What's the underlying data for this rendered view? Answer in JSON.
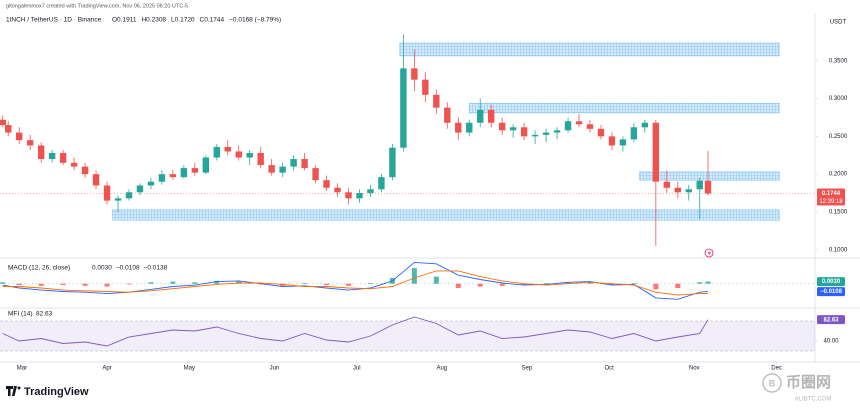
{
  "header": {
    "author": "gitongalenmox7 created with TradingView.com, Nov 06, 2025 06:20 UTC-5",
    "symbol": "1INCH / TetherUS · 1D · Binance",
    "ohlc": [
      "O0.1911",
      "H0.2308",
      "L0.1720",
      "C0.1744",
      "−0.0168 (−8.79%)"
    ]
  },
  "chart_data": [
    {
      "type": "candlestick",
      "currency": "USDT",
      "xlim": [
        52,
        349
      ],
      "xticks": [
        {
          "value": 60,
          "label": "Mar"
        },
        {
          "value": 91,
          "label": "Apr"
        },
        {
          "value": 121,
          "label": "May"
        },
        {
          "value": 152,
          "label": "Jun"
        },
        {
          "value": 182,
          "label": "Jul"
        },
        {
          "value": 213,
          "label": "Aug"
        },
        {
          "value": 244,
          "label": "Sep"
        },
        {
          "value": 274,
          "label": "Oct"
        },
        {
          "value": 305,
          "label": "Nov"
        },
        {
          "value": 335,
          "label": "Dec"
        }
      ],
      "ylim": [
        0.093,
        0.404
      ],
      "yticks": [
        {
          "value": 0.1,
          "label": "0.1000"
        },
        {
          "value": 0.15,
          "label": "0.1500"
        },
        {
          "value": 0.2,
          "label": "0.2000"
        },
        {
          "value": 0.25,
          "label": "0.2500"
        },
        {
          "value": 0.3,
          "label": "0.3000"
        },
        {
          "value": 0.35,
          "label": "0.3500"
        }
      ],
      "grid": false,
      "up_color": "#26a69a",
      "down_color": "#ef5350",
      "x": [
        53,
        55,
        59,
        63,
        67,
        71,
        75,
        79,
        83,
        87,
        91,
        95,
        99,
        103,
        107,
        111,
        115,
        119,
        123,
        127,
        131,
        135,
        139,
        143,
        147,
        151,
        155,
        159,
        163,
        167,
        171,
        175,
        179,
        183,
        187,
        191,
        195,
        199,
        203,
        207,
        211,
        215,
        219,
        223,
        227,
        231,
        235,
        239,
        243,
        247,
        251,
        255,
        259,
        263,
        267,
        271,
        275,
        279,
        283,
        287,
        291,
        295,
        299,
        303,
        307,
        310
      ],
      "open": [
        0.272,
        0.265,
        0.255,
        0.245,
        0.238,
        0.22,
        0.228,
        0.215,
        0.21,
        0.2,
        0.185,
        0.165,
        0.168,
        0.176,
        0.185,
        0.19,
        0.2,
        0.196,
        0.208,
        0.202,
        0.222,
        0.236,
        0.23,
        0.222,
        0.228,
        0.212,
        0.202,
        0.21,
        0.22,
        0.208,
        0.192,
        0.182,
        0.176,
        0.168,
        0.175,
        0.18,
        0.196,
        0.235,
        0.34,
        0.325,
        0.305,
        0.288,
        0.268,
        0.255,
        0.268,
        0.285,
        0.268,
        0.258,
        0.262,
        0.25,
        0.252,
        0.255,
        0.258,
        0.27,
        0.266,
        0.26,
        0.25,
        0.238,
        0.246,
        0.262,
        0.268,
        0.19,
        0.182,
        0.176,
        0.18,
        0.1911
      ],
      "high": [
        0.278,
        0.27,
        0.262,
        0.252,
        0.242,
        0.232,
        0.232,
        0.222,
        0.215,
        0.205,
        0.19,
        0.172,
        0.18,
        0.188,
        0.195,
        0.205,
        0.206,
        0.212,
        0.215,
        0.225,
        0.24,
        0.245,
        0.238,
        0.232,
        0.236,
        0.22,
        0.215,
        0.225,
        0.228,
        0.212,
        0.198,
        0.188,
        0.182,
        0.18,
        0.186,
        0.2,
        0.24,
        0.385,
        0.365,
        0.335,
        0.312,
        0.295,
        0.275,
        0.272,
        0.3,
        0.292,
        0.275,
        0.266,
        0.268,
        0.258,
        0.26,
        0.262,
        0.275,
        0.28,
        0.272,
        0.265,
        0.256,
        0.25,
        0.268,
        0.272,
        0.272,
        0.205,
        0.19,
        0.186,
        0.195,
        0.2308
      ],
      "low": [
        0.262,
        0.25,
        0.24,
        0.232,
        0.215,
        0.215,
        0.212,
        0.205,
        0.195,
        0.18,
        0.16,
        0.15,
        0.165,
        0.172,
        0.18,
        0.186,
        0.192,
        0.194,
        0.198,
        0.2,
        0.218,
        0.225,
        0.218,
        0.212,
        0.208,
        0.198,
        0.196,
        0.205,
        0.205,
        0.188,
        0.178,
        0.17,
        0.16,
        0.162,
        0.17,
        0.176,
        0.192,
        0.23,
        0.31,
        0.295,
        0.28,
        0.26,
        0.245,
        0.25,
        0.262,
        0.262,
        0.252,
        0.248,
        0.245,
        0.24,
        0.242,
        0.246,
        0.255,
        0.262,
        0.255,
        0.246,
        0.232,
        0.23,
        0.242,
        0.255,
        0.105,
        0.175,
        0.168,
        0.165,
        0.14,
        0.172
      ],
      "close": [
        0.265,
        0.255,
        0.245,
        0.238,
        0.22,
        0.228,
        0.215,
        0.21,
        0.2,
        0.185,
        0.165,
        0.168,
        0.176,
        0.185,
        0.19,
        0.2,
        0.196,
        0.208,
        0.202,
        0.222,
        0.236,
        0.23,
        0.222,
        0.228,
        0.212,
        0.202,
        0.21,
        0.22,
        0.208,
        0.192,
        0.182,
        0.176,
        0.168,
        0.175,
        0.18,
        0.196,
        0.235,
        0.34,
        0.325,
        0.305,
        0.288,
        0.268,
        0.255,
        0.268,
        0.285,
        0.268,
        0.258,
        0.262,
        0.25,
        0.252,
        0.255,
        0.258,
        0.27,
        0.266,
        0.26,
        0.25,
        0.238,
        0.246,
        0.262,
        0.268,
        0.19,
        0.182,
        0.176,
        0.18,
        0.1912,
        0.1744
      ],
      "zones": [
        [
          197.7,
          336,
          0.3564,
          0.3736
        ],
        [
          223,
          336,
          0.281,
          0.294
        ],
        [
          285,
          336,
          0.192,
          0.203
        ],
        [
          93,
          336,
          0.139,
          0.153
        ]
      ],
      "last_label": "0.1744",
      "countdown": "12:39:18"
    },
    {
      "type": "macd",
      "title": "MACD (12, 26, close)",
      "readout": [
        "0.0030",
        "−0.0108",
        "−0.0138"
      ],
      "ylim": [
        -0.03,
        0.032
      ],
      "x": [
        53,
        59,
        67,
        75,
        83,
        91,
        99,
        107,
        115,
        123,
        131,
        139,
        147,
        155,
        163,
        171,
        179,
        187,
        195,
        203,
        211,
        219,
        227,
        235,
        243,
        251,
        259,
        267,
        275,
        283,
        291,
        299,
        307,
        310
      ],
      "histogram": [
        0.002,
        -0.002,
        -0.003,
        -0.002,
        -0.003,
        -0.004,
        -0.001,
        0.002,
        0.003,
        0.002,
        0.004,
        0.003,
        -0.001,
        -0.003,
        0.001,
        -0.002,
        -0.003,
        0.001,
        0.008,
        0.022,
        0.01,
        -0.006,
        -0.004,
        -0.003,
        -0.002,
        0.001,
        0.002,
        0.001,
        -0.002,
        0.001,
        -0.008,
        -0.006,
        0.002,
        0.003
      ],
      "macd": [
        -0.002,
        -0.006,
        -0.009,
        -0.011,
        -0.012,
        -0.014,
        -0.012,
        -0.008,
        -0.004,
        -0.002,
        0.003,
        0.004,
        0.0,
        -0.004,
        -0.003,
        -0.006,
        -0.009,
        -0.006,
        0.004,
        0.03,
        0.028,
        0.012,
        0.006,
        0.001,
        -0.002,
        -0.001,
        0.002,
        0.003,
        -0.002,
        -0.001,
        -0.02,
        -0.022,
        -0.012,
        -0.0108
      ],
      "signal": [
        -0.004,
        -0.004,
        -0.006,
        -0.009,
        -0.01,
        -0.011,
        -0.012,
        -0.01,
        -0.007,
        -0.004,
        -0.001,
        0.001,
        0.001,
        -0.001,
        -0.004,
        -0.004,
        -0.006,
        -0.007,
        -0.004,
        0.008,
        0.018,
        0.018,
        0.01,
        0.004,
        0.0,
        -0.002,
        0.0,
        0.002,
        0.0,
        -0.002,
        -0.012,
        -0.016,
        -0.014,
        -0.0138
      ],
      "colors": {
        "up": "#26a69a",
        "down": "#ff5252",
        "macd": "#2962ff",
        "signal": "#ff6d00"
      }
    },
    {
      "type": "mfi",
      "title": "MFI (14)",
      "readout": "82.63",
      "ylim": [
        10,
        100
      ],
      "yticks": [
        {
          "value": 40,
          "label": "40.00"
        }
      ],
      "band": [
        20,
        80
      ],
      "color": "#7e57c2",
      "x": [
        53,
        59,
        67,
        75,
        83,
        91,
        99,
        107,
        115,
        123,
        131,
        139,
        147,
        155,
        163,
        171,
        179,
        187,
        195,
        203,
        211,
        219,
        227,
        235,
        243,
        251,
        259,
        267,
        275,
        283,
        291,
        299,
        307,
        310
      ],
      "values": [
        55,
        40,
        45,
        35,
        38,
        30,
        48,
        55,
        62,
        60,
        68,
        55,
        45,
        40,
        55,
        42,
        38,
        50,
        72,
        88,
        75,
        52,
        60,
        45,
        48,
        55,
        62,
        58,
        45,
        55,
        40,
        48,
        55,
        82.63
      ]
    }
  ],
  "footer": {
    "brand": "TradingView",
    "watermark": "币圈网",
    "watermark_sub": "ALIBTC.COM"
  }
}
